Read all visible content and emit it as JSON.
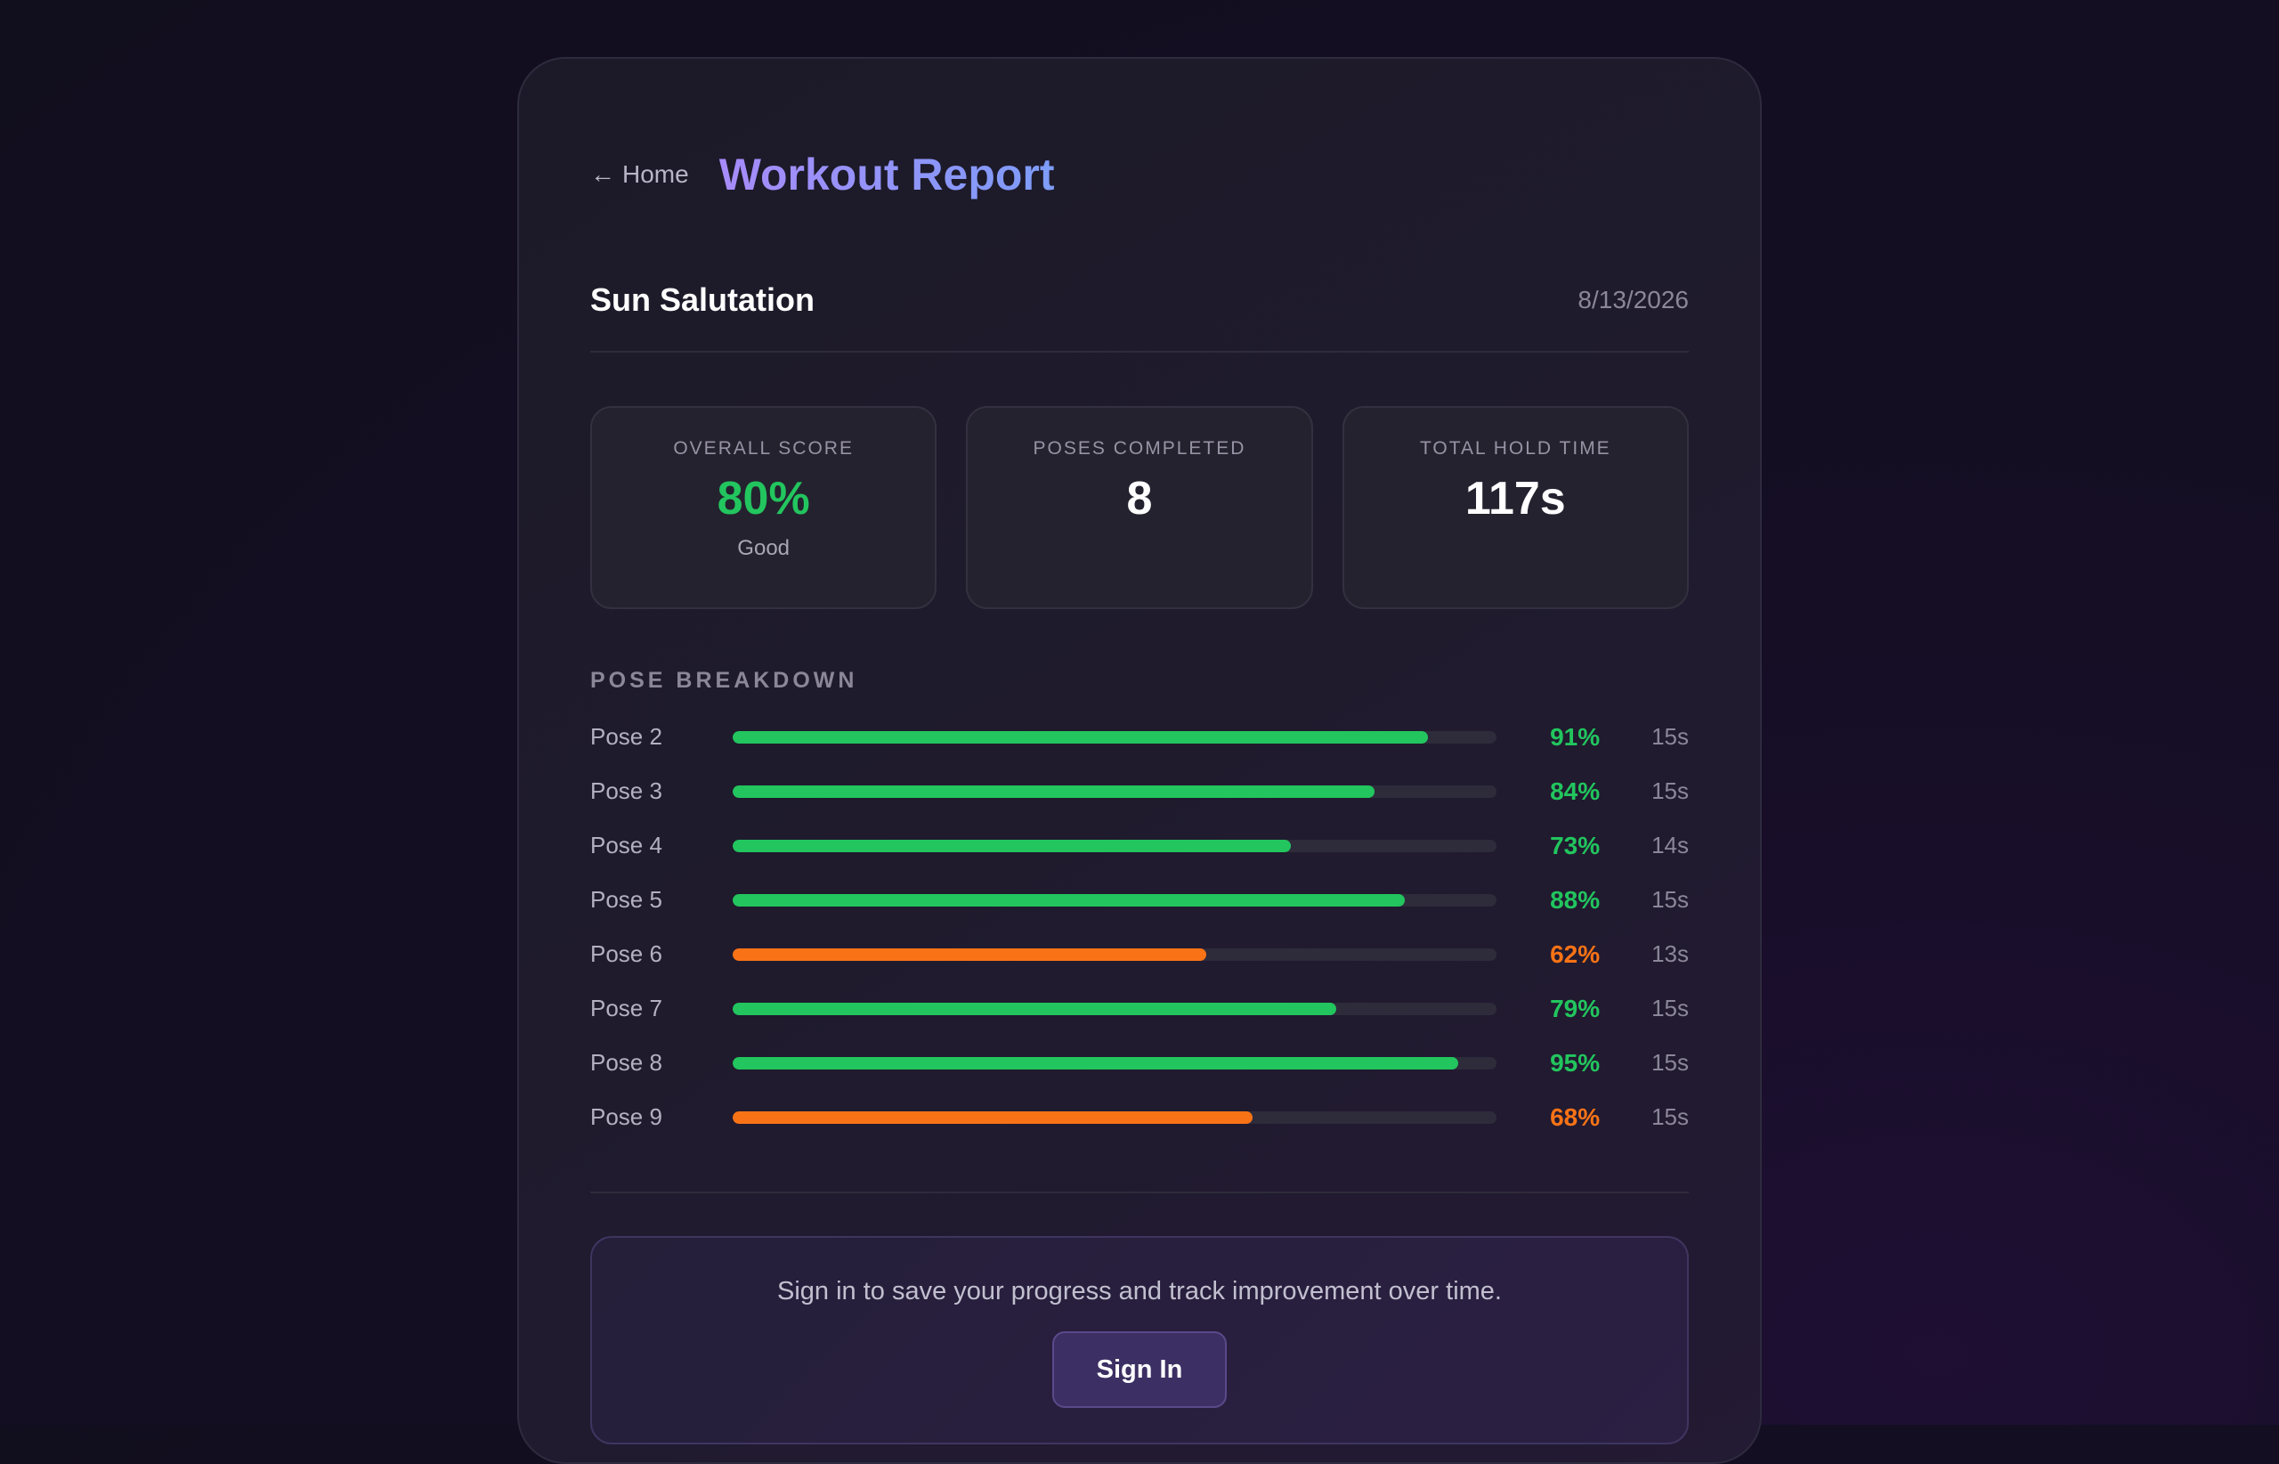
{
  "header": {
    "back_arrow": "←",
    "back_label": "Home",
    "title": "Workout Report"
  },
  "workout": {
    "name": "Sun Salutation",
    "date": "8/13/2026"
  },
  "stats": {
    "overall": {
      "label": "OVERALL SCORE",
      "value": "80%",
      "sub": "Good"
    },
    "poses": {
      "label": "POSES COMPLETED",
      "value": "8"
    },
    "hold": {
      "label": "TOTAL HOLD TIME",
      "value": "117s"
    }
  },
  "breakdown": {
    "title": "POSE BREAKDOWN",
    "poses": [
      {
        "name": "Pose 2",
        "score": 91,
        "pct": "91%",
        "hold": "15s"
      },
      {
        "name": "Pose 3",
        "score": 84,
        "pct": "84%",
        "hold": "15s"
      },
      {
        "name": "Pose 4",
        "score": 73,
        "pct": "73%",
        "hold": "14s"
      },
      {
        "name": "Pose 5",
        "score": 88,
        "pct": "88%",
        "hold": "15s"
      },
      {
        "name": "Pose 6",
        "score": 62,
        "pct": "62%",
        "hold": "13s"
      },
      {
        "name": "Pose 7",
        "score": 79,
        "pct": "79%",
        "hold": "15s"
      },
      {
        "name": "Pose 8",
        "score": 95,
        "pct": "95%",
        "hold": "15s"
      },
      {
        "name": "Pose 9",
        "score": 68,
        "pct": "68%",
        "hold": "15s"
      }
    ]
  },
  "signin": {
    "message": "Sign in to save your progress and track improvement over time.",
    "button_label": "Sign In"
  },
  "colors": {
    "good": "#22c55e",
    "fair": "#f97316",
    "accent_start": "#a78bfa",
    "accent_end": "#7d9cf8"
  }
}
